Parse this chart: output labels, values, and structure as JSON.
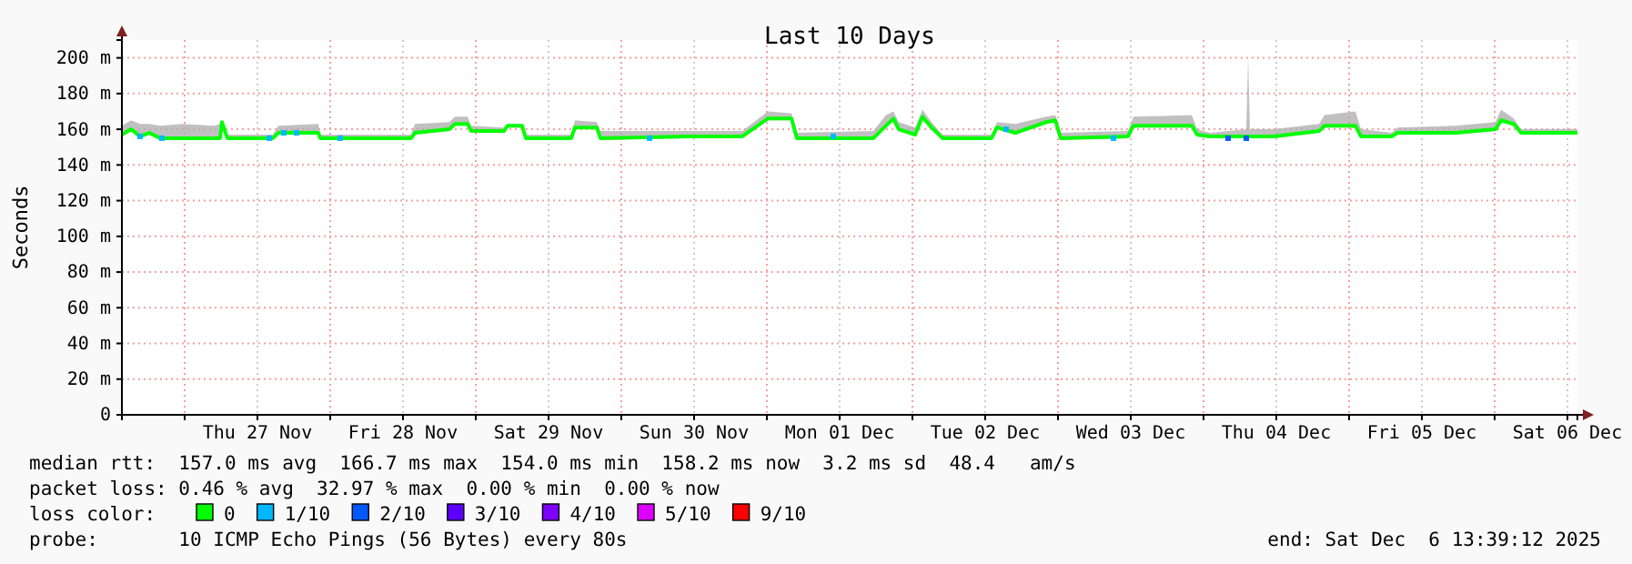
{
  "chart_data": {
    "type": "line",
    "title": "Last 10 Days",
    "ylabel": "Seconds",
    "legend_title": "loss color:",
    "legend": "bottom",
    "grid": true,
    "line_style": "solid",
    "xlim": [
      "2025-11-26T13:39",
      "2025-12-06T13:39"
    ],
    "xticks": [
      {
        "value": "2025-11-27T00:00",
        "label": null
      },
      {
        "value": "2025-11-27T12:00",
        "label": "Thu 27 Nov"
      },
      {
        "value": "2025-11-28T00:00",
        "label": null
      },
      {
        "value": "2025-11-28T12:00",
        "label": "Fri 28 Nov"
      },
      {
        "value": "2025-11-29T00:00",
        "label": null
      },
      {
        "value": "2025-11-29T12:00",
        "label": "Sat 29 Nov"
      },
      {
        "value": "2025-11-30T00:00",
        "label": null
      },
      {
        "value": "2025-11-30T12:00",
        "label": "Sun 30 Nov"
      },
      {
        "value": "2025-12-01T00:00",
        "label": null
      },
      {
        "value": "2025-12-01T12:00",
        "label": "Mon 01 Dec"
      },
      {
        "value": "2025-12-02T00:00",
        "label": null
      },
      {
        "value": "2025-12-02T12:00",
        "label": "Tue 02 Dec"
      },
      {
        "value": "2025-12-03T00:00",
        "label": null
      },
      {
        "value": "2025-12-03T12:00",
        "label": "Wed 03 Dec"
      },
      {
        "value": "2025-12-04T00:00",
        "label": null
      },
      {
        "value": "2025-12-04T12:00",
        "label": "Thu 04 Dec"
      },
      {
        "value": "2025-12-05T00:00",
        "label": null
      },
      {
        "value": "2025-12-05T12:00",
        "label": "Fri 05 Dec"
      },
      {
        "value": "2025-12-06T00:00",
        "label": null
      },
      {
        "value": "2025-12-06T12:00",
        "label": "Sat 06 Dec"
      }
    ],
    "ylim": [
      0,
      210
    ],
    "yticks": [
      0,
      {
        "value": 20,
        "label": "20 m"
      },
      {
        "value": 40,
        "label": "40 m"
      },
      {
        "value": 60,
        "label": "60 m"
      },
      {
        "value": 80,
        "label": "80 m"
      },
      {
        "value": 100,
        "label": "100 m"
      },
      {
        "value": 120,
        "label": "120 m"
      },
      {
        "value": 140,
        "label": "140 m"
      },
      {
        "value": 160,
        "label": "160 m"
      },
      {
        "value": 180,
        "label": "180 m"
      },
      {
        "value": 200,
        "label": "200 m"
      }
    ],
    "series": [
      {
        "name": "0",
        "color": "#00ff00",
        "x": [
          "2025-11-26T13:39",
          "2025-11-26T15:09",
          "2025-11-26T16:39",
          "2025-11-26T18:09",
          "2025-11-26T19:57",
          "2025-11-26T23:33",
          "2025-11-27T04:57",
          "2025-11-27T05:51",
          "2025-11-27T06:09",
          "2025-11-27T07:03",
          "2025-11-27T14:33",
          "2025-11-27T15:27",
          "2025-11-27T22:03",
          "2025-11-27T22:21",
          "2025-11-28T13:21",
          "2025-11-28T13:57",
          "2025-11-28T19:39",
          "2025-11-28T20:33",
          "2025-11-28T22:39",
          "2025-11-28T23:15",
          "2025-11-29T04:39",
          "2025-11-29T05:15",
          "2025-11-29T07:39",
          "2025-11-29T08:15",
          "2025-11-29T15:45",
          "2025-11-29T16:21",
          "2025-11-29T19:57",
          "2025-11-29T20:33",
          "2025-11-30T10:57",
          "2025-11-30T19:57",
          "2025-12-01T00:09",
          "2025-12-01T04:03",
          "2025-12-01T04:57",
          "2025-12-01T17:33",
          "2025-12-01T19:39",
          "2025-12-01T20:51",
          "2025-12-01T21:45",
          "2025-12-02T00:27",
          "2025-12-02T01:39",
          "2025-12-02T03:09",
          "2025-12-02T04:57",
          "2025-12-02T13:03",
          "2025-12-02T13:57",
          "2025-12-02T16:57",
          "2025-12-02T22:03",
          "2025-12-02T23:33",
          "2025-12-03T00:27",
          "2025-12-03T11:33",
          "2025-12-03T12:27",
          "2025-12-03T22:03",
          "2025-12-03T22:57",
          "2025-12-04T01:03",
          "2025-12-04T07:03",
          "2025-12-04T07:21",
          "2025-12-04T07:39",
          "2025-12-04T11:33",
          "2025-12-04T19:03",
          "2025-12-04T19:57",
          "2025-12-05T01:03",
          "2025-12-05T01:57",
          "2025-12-05T07:03",
          "2025-12-05T07:57",
          "2025-12-05T17:33",
          "2025-12-06T00:09",
          "2025-12-06T01:03",
          "2025-12-06T03:09",
          "2025-12-06T04:21",
          "2025-12-06T13:39"
        ],
        "values": [
          157,
          160,
          156,
          158,
          155,
          155,
          155,
          155,
          164,
          155,
          155,
          158,
          158,
          155,
          155,
          158,
          160,
          163,
          163,
          159,
          159,
          162,
          162,
          155,
          155,
          161,
          161,
          155,
          156,
          156,
          166,
          166,
          155,
          155,
          162,
          166,
          160,
          157,
          167,
          161,
          155,
          155,
          161,
          158,
          164,
          165,
          155,
          156,
          162,
          162,
          157,
          156,
          156,
          156,
          156,
          156,
          159,
          162,
          162,
          156,
          156,
          158,
          158,
          160,
          165,
          163,
          158,
          158
        ],
        "lower": [
          156,
          159,
          155,
          157,
          154,
          154,
          154,
          154,
          163,
          154,
          154,
          157,
          157,
          154,
          154,
          157,
          159,
          162,
          162,
          158,
          158,
          161,
          161,
          154,
          154,
          160,
          160,
          154,
          155,
          155,
          165,
          165,
          154,
          154,
          161,
          165,
          159,
          156,
          166,
          160,
          154,
          154,
          160,
          157,
          163,
          164,
          154,
          155,
          161,
          161,
          156,
          155,
          155,
          155,
          155,
          155,
          158,
          161,
          161,
          155,
          155,
          157,
          157,
          159,
          164,
          162,
          157,
          157
        ],
        "upper": [
          162,
          165,
          163,
          163,
          162,
          163,
          162,
          163,
          165,
          157,
          157,
          162,
          163,
          157,
          157,
          163,
          164,
          167,
          167,
          162,
          161,
          163,
          163,
          157,
          157,
          165,
          164,
          159,
          159,
          159,
          170,
          169,
          158,
          159,
          168,
          170,
          164,
          161,
          171,
          164,
          157,
          157,
          164,
          163,
          167,
          168,
          158,
          159,
          167,
          168,
          160,
          158,
          160,
          200,
          160,
          160,
          163,
          168,
          170,
          160,
          158,
          161,
          162,
          164,
          171,
          166,
          160,
          160
        ]
      },
      {
        "name": "1/10",
        "type": "scatter",
        "color": "#00b8ff",
        "x": [
          "2025-11-26T16:39",
          "2025-11-26T20:15",
          "2025-11-27T13:57",
          "2025-11-27T16:21",
          "2025-11-27T18:27",
          "2025-11-28T01:39",
          "2025-11-30T04:39",
          "2025-12-01T10:57",
          "2025-12-02T15:27",
          "2025-12-03T09:09"
        ],
        "values": [
          156,
          155,
          155,
          158,
          158,
          155,
          155,
          156,
          160,
          155
        ]
      },
      {
        "name": "2/10",
        "type": "scatter",
        "color": "#0059ff",
        "x": [
          "2025-12-04T04:03",
          "2025-12-04T07:03"
        ],
        "values": [
          155,
          155
        ]
      },
      {
        "name": "3/10",
        "type": "scatter",
        "color": "#5e00ff"
      },
      {
        "name": "4/10",
        "type": "scatter",
        "color": "#7e00ff"
      },
      {
        "name": "5/10",
        "type": "scatter",
        "color": "#dd00ff"
      },
      {
        "name": "9/10",
        "type": "scatter",
        "color": "#ff0000"
      }
    ],
    "annotations": [
      "median rtt:  157.0 ms avg  166.7 ms max  154.0 ms min  158.2 ms now  3.2 ms sd  48.4   am/s",
      "packet loss: 0.46 % avg  32.97 % max  0.00 % min  0.00 % now",
      "probe:       10 ICMP Echo Pings (56 Bytes) every 80s",
      "end: Sat Dec  6 13:39:12 2025"
    ]
  }
}
